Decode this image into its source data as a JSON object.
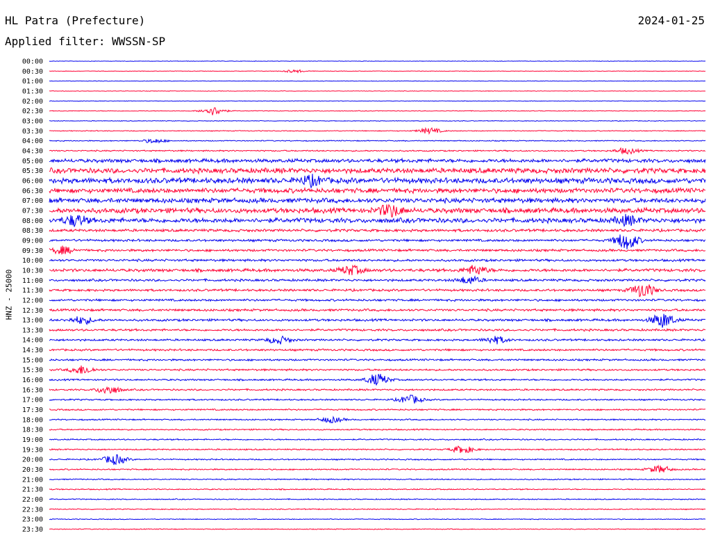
{
  "header": {
    "station": "HL Patra (Prefecture)",
    "date": "2024-01-25",
    "filter": "Applied filter: WWSSN-SP",
    "channel": "HNZ - 25000"
  },
  "colors": {
    "even": "#0000ee",
    "odd": "#ff0033"
  },
  "chart_data": {
    "type": "line",
    "title": "HL Patra (Prefecture)",
    "subtitle": "Applied filter: WWSSN-SP",
    "ylabel": "HNZ - 25000",
    "row_labels": [
      "00:00",
      "00:30",
      "01:00",
      "01:30",
      "02:00",
      "02:30",
      "03:00",
      "03:30",
      "04:00",
      "04:30",
      "05:00",
      "05:30",
      "06:00",
      "06:30",
      "07:00",
      "07:30",
      "08:00",
      "08:30",
      "09:00",
      "09:30",
      "10:00",
      "10:30",
      "11:00",
      "11:30",
      "12:00",
      "12:30",
      "13:00",
      "13:30",
      "14:00",
      "14:30",
      "15:00",
      "15:30",
      "16:00",
      "16:30",
      "17:00",
      "17:30",
      "18:00",
      "18:30",
      "19:00",
      "19:30",
      "20:00",
      "20:30",
      "21:00",
      "21:30",
      "22:00",
      "22:30",
      "23:00",
      "23:30"
    ],
    "noise_level": [
      0.3,
      0.3,
      0.3,
      0.3,
      0.3,
      0.4,
      0.4,
      0.5,
      0.6,
      0.8,
      2.2,
      3.0,
      3.2,
      2.8,
      2.8,
      3.0,
      2.8,
      1.6,
      1.4,
      1.4,
      1.4,
      1.8,
      1.4,
      1.4,
      1.3,
      1.4,
      1.4,
      1.3,
      1.2,
      1.2,
      1.1,
      1.1,
      1.0,
      1.0,
      0.9,
      0.9,
      0.8,
      0.8,
      0.8,
      0.8,
      0.8,
      0.8,
      0.7,
      0.7,
      0.6,
      0.6,
      0.5,
      0.5
    ],
    "events": [
      {
        "row": 1,
        "pos": 0.374,
        "amp": 2
      },
      {
        "row": 5,
        "pos": 0.25,
        "amp": 6
      },
      {
        "row": 7,
        "pos": 0.58,
        "amp": 4
      },
      {
        "row": 8,
        "pos": 0.16,
        "amp": 3
      },
      {
        "row": 9,
        "pos": 0.88,
        "amp": 4
      },
      {
        "row": 12,
        "pos": 0.4,
        "amp": 6
      },
      {
        "row": 15,
        "pos": 0.52,
        "amp": 8
      },
      {
        "row": 16,
        "pos": 0.04,
        "amp": 7
      },
      {
        "row": 16,
        "pos": 0.88,
        "amp": 6
      },
      {
        "row": 18,
        "pos": 0.88,
        "amp": 12
      },
      {
        "row": 19,
        "pos": 0.02,
        "amp": 5
      },
      {
        "row": 21,
        "pos": 0.46,
        "amp": 6
      },
      {
        "row": 21,
        "pos": 0.65,
        "amp": 6
      },
      {
        "row": 22,
        "pos": 0.64,
        "amp": 5
      },
      {
        "row": 23,
        "pos": 0.905,
        "amp": 10
      },
      {
        "row": 26,
        "pos": 0.05,
        "amp": 5
      },
      {
        "row": 26,
        "pos": 0.935,
        "amp": 10
      },
      {
        "row": 28,
        "pos": 0.35,
        "amp": 5
      },
      {
        "row": 28,
        "pos": 0.68,
        "amp": 5
      },
      {
        "row": 31,
        "pos": 0.05,
        "amp": 6
      },
      {
        "row": 32,
        "pos": 0.5,
        "amp": 8
      },
      {
        "row": 33,
        "pos": 0.09,
        "amp": 6
      },
      {
        "row": 34,
        "pos": 0.55,
        "amp": 6
      },
      {
        "row": 36,
        "pos": 0.43,
        "amp": 4
      },
      {
        "row": 39,
        "pos": 0.63,
        "amp": 5
      },
      {
        "row": 40,
        "pos": 0.1,
        "amp": 7
      },
      {
        "row": 41,
        "pos": 0.93,
        "amp": 5
      }
    ]
  }
}
